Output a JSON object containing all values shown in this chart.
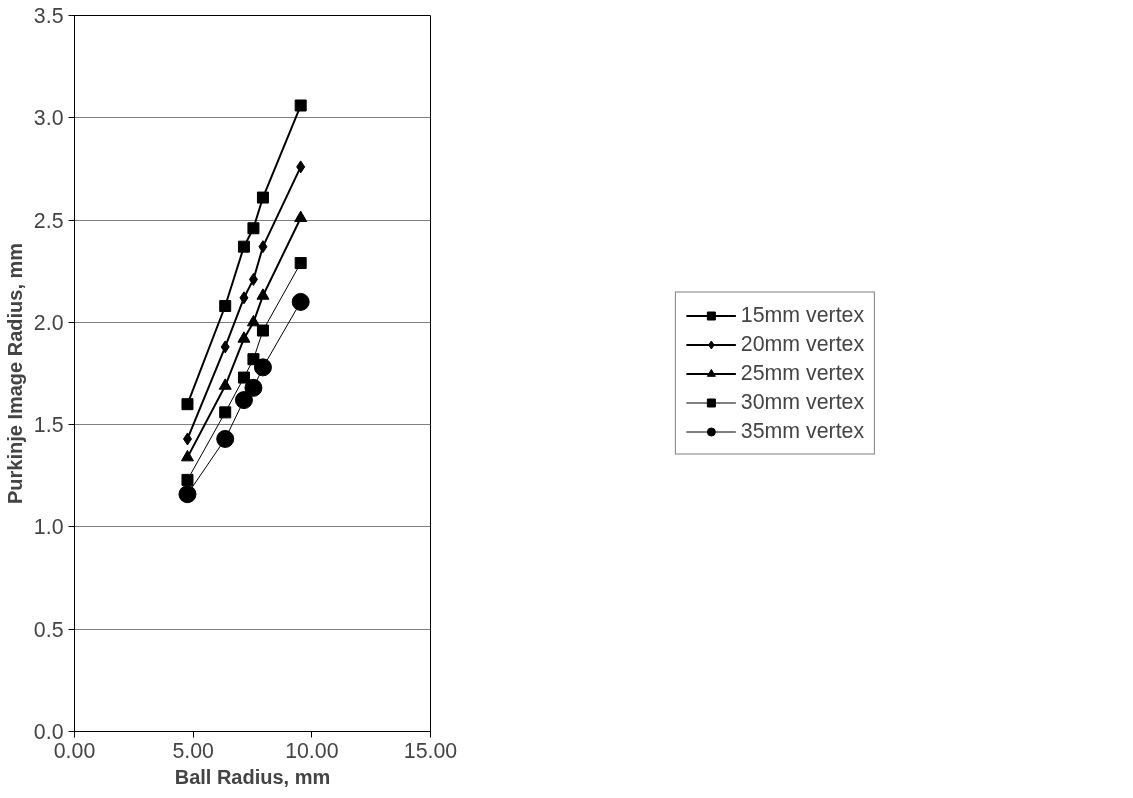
{
  "chart_data": {
    "type": "line",
    "xlabel": "Ball Radius, mm",
    "ylabel": "Purkinje Image Radius, mm",
    "x": [
      4.76,
      6.35,
      7.14,
      7.54,
      7.94,
      9.53
    ],
    "series": [
      {
        "name": "15mm vertex",
        "color": "#000000",
        "marker": "square",
        "values": [
          1.6,
          2.08,
          2.37,
          2.46,
          2.61,
          3.06
        ]
      },
      {
        "name": "20mm vertex",
        "color": "#000000",
        "marker": "diamond",
        "values": [
          1.43,
          1.88,
          2.12,
          2.21,
          2.37,
          2.76
        ]
      },
      {
        "name": "25mm vertex",
        "color": "#000000",
        "marker": "triangle",
        "values": [
          1.34,
          1.69,
          1.92,
          2.0,
          2.13,
          2.51
        ]
      },
      {
        "name": "30mm vertex",
        "color": "#000000",
        "marker": "square",
        "values": [
          1.23,
          1.56,
          1.73,
          1.82,
          1.96,
          2.29
        ]
      },
      {
        "name": "35mm vertex",
        "color": "#000000",
        "marker": "circle",
        "values": [
          1.16,
          1.43,
          1.62,
          1.68,
          1.78,
          2.1
        ]
      }
    ],
    "xlim": [
      0,
      15
    ],
    "xticks": [
      {
        "value": 0,
        "label": "0.00"
      },
      {
        "value": 5,
        "label": "5.00"
      },
      {
        "value": 10,
        "label": "10.00"
      },
      {
        "value": 15,
        "label": "15.00"
      }
    ],
    "ylim": [
      0,
      3.5
    ],
    "yticks": [
      {
        "value": 0,
        "label": "0.0"
      },
      {
        "value": 0.5,
        "label": "0.5"
      },
      {
        "value": 1,
        "label": "1.0"
      },
      {
        "value": 1.5,
        "label": "1.5"
      },
      {
        "value": 2,
        "label": "2.0"
      },
      {
        "value": 2.5,
        "label": "2.5"
      },
      {
        "value": 3,
        "label": "3.0"
      },
      {
        "value": 3.5,
        "label": "3.5"
      }
    ],
    "grid": "y",
    "legend": "right"
  }
}
